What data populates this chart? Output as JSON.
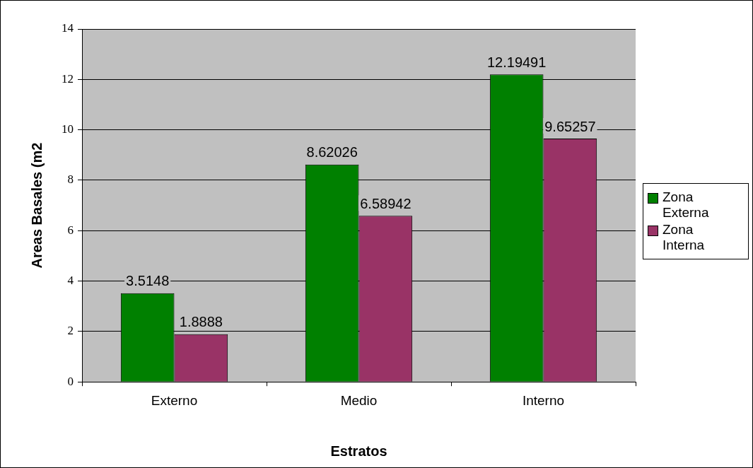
{
  "chart_data": {
    "type": "bar",
    "xlabel": "Estratos",
    "ylabel": "Areas Basales (m2",
    "categories": [
      "Externo",
      "Medio",
      "Interno"
    ],
    "series": [
      {
        "name": "Zona Externa",
        "color": "#008000",
        "values": [
          3.5148,
          8.62026,
          12.19491
        ]
      },
      {
        "name": "Zona Interna",
        "color": "#993366",
        "values": [
          1.8888,
          6.58942,
          9.65257
        ]
      }
    ],
    "ylim": [
      0,
      14
    ],
    "yticks": [
      0,
      2,
      4,
      6,
      8,
      10,
      12,
      14
    ],
    "grid": "y",
    "legend": "right",
    "data_labels": true
  }
}
